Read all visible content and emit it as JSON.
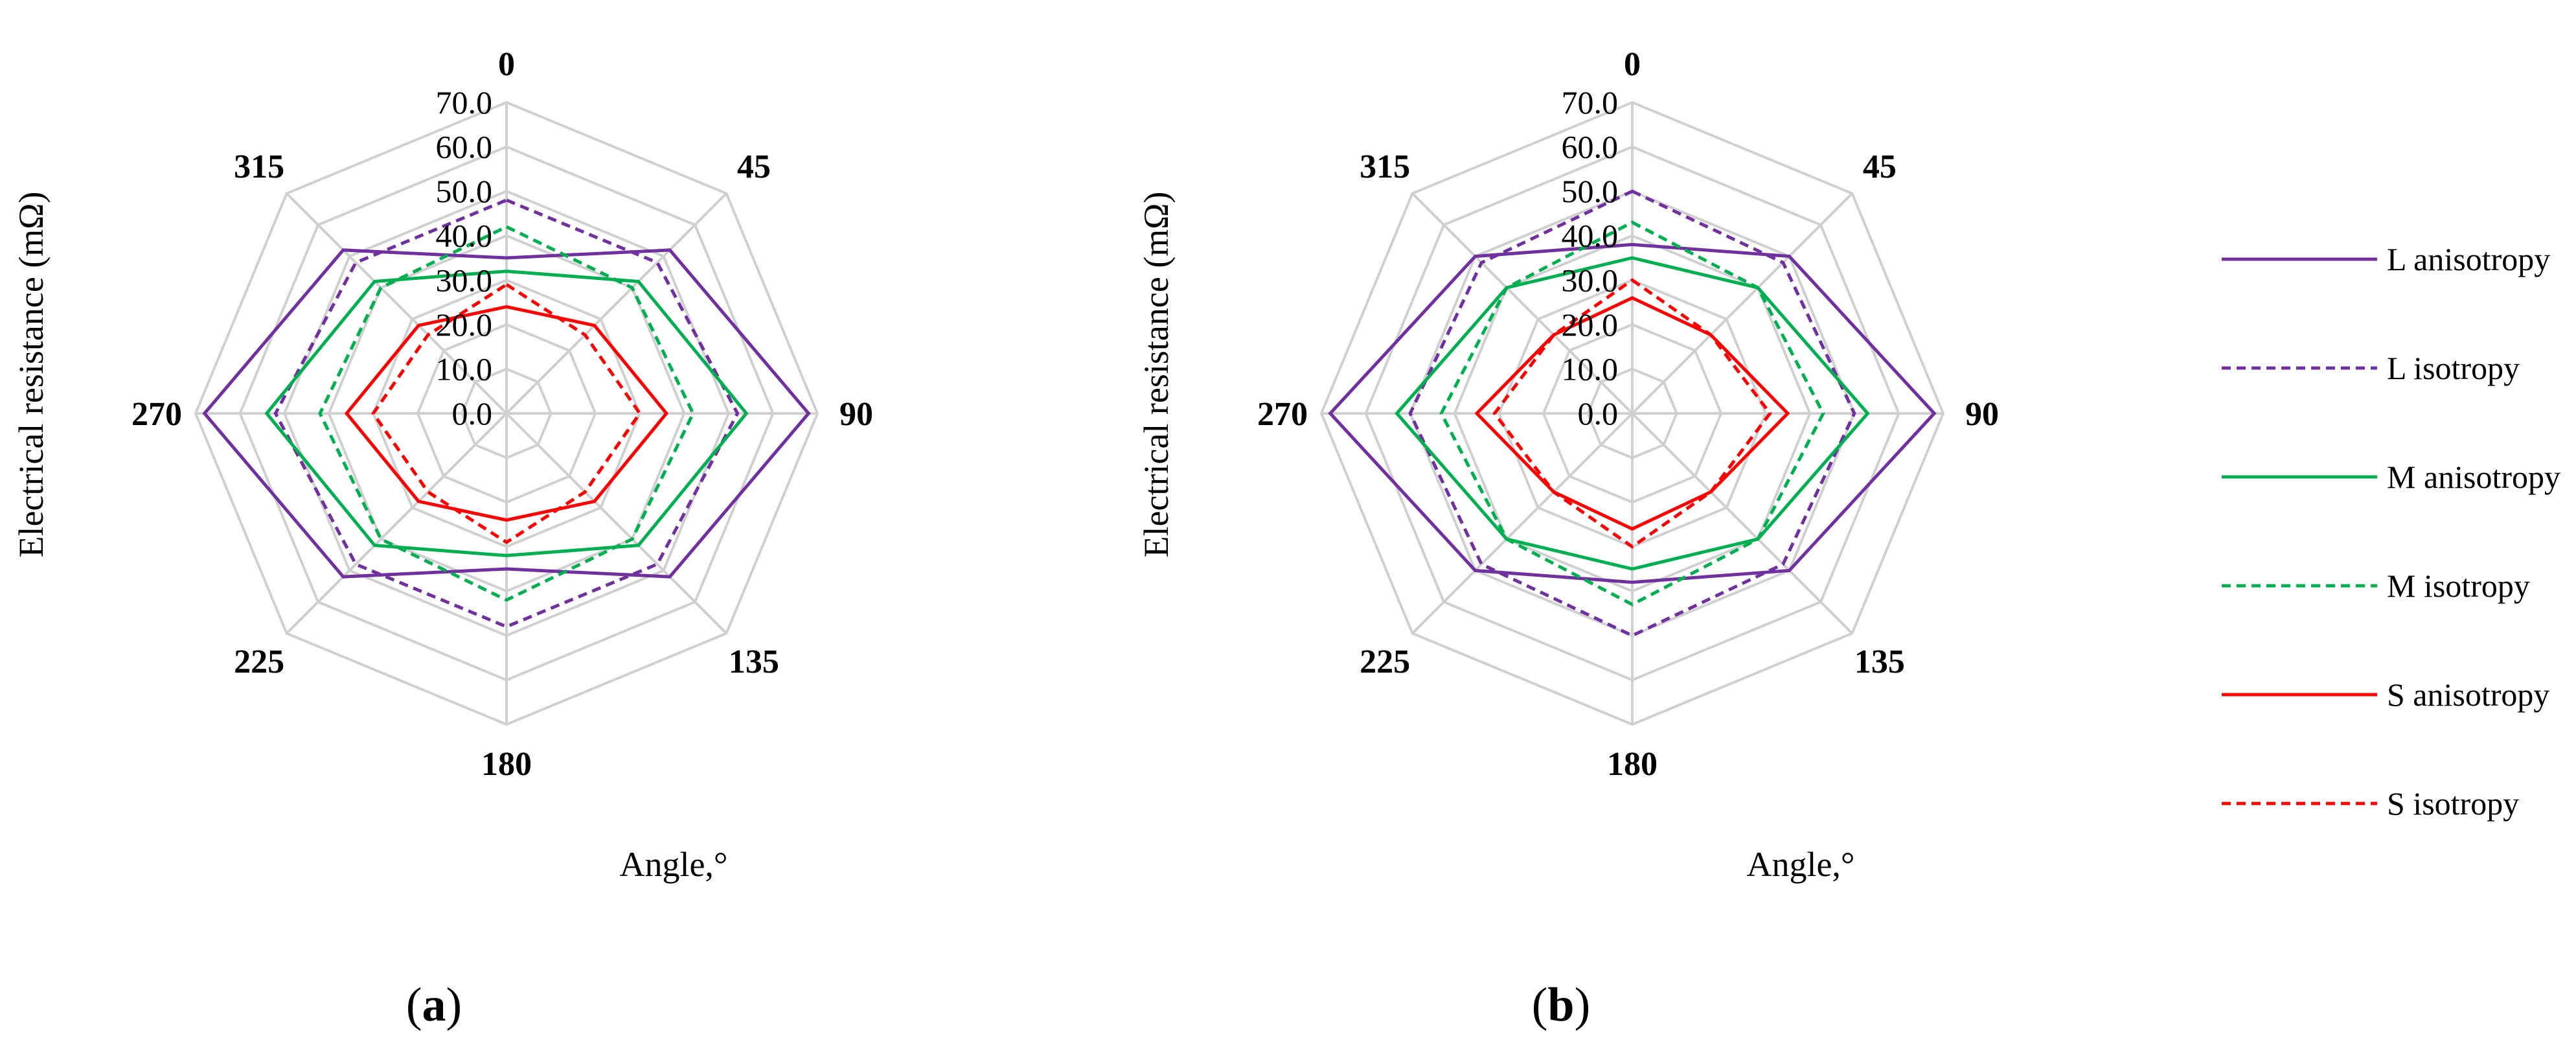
{
  "chart_data": [
    {
      "type": "radar",
      "panel_label": "a",
      "categories": [
        "0",
        "45",
        "90",
        "135",
        "180",
        "225",
        "270",
        "315"
      ],
      "ylim": [
        0,
        70
      ],
      "tick_labels": [
        "0.0",
        "10.0",
        "20.0",
        "30.0",
        "40.0",
        "50.0",
        "60.0",
        "70.0"
      ],
      "ylabel": "Electrical resistance (mΩ)",
      "xlabel": "Angle,°",
      "series": [
        {
          "name": "L anisotropy",
          "color": "#7030A0",
          "dash": "solid",
          "values": [
            35,
            52,
            68,
            52,
            35,
            52,
            68,
            52
          ]
        },
        {
          "name": "L isotropy",
          "color": "#7030A0",
          "dash": "dashed",
          "values": [
            48,
            48,
            52,
            48,
            48,
            48,
            52,
            48
          ]
        },
        {
          "name": "M anisotropy",
          "color": "#00B050",
          "dash": "solid",
          "values": [
            32,
            42,
            54,
            42,
            32,
            42,
            54,
            42
          ]
        },
        {
          "name": "M isotropy",
          "color": "#00B050",
          "dash": "dashed",
          "values": [
            42,
            40,
            42,
            40,
            42,
            40,
            42,
            40
          ]
        },
        {
          "name": "S anisotropy",
          "color": "#FF0000",
          "dash": "solid",
          "values": [
            24,
            28,
            36,
            28,
            24,
            28,
            36,
            28
          ]
        },
        {
          "name": "S isotropy",
          "color": "#FF0000",
          "dash": "dashed",
          "values": [
            29,
            25,
            30,
            25,
            29,
            25,
            30,
            25
          ]
        }
      ]
    },
    {
      "type": "radar",
      "panel_label": "b",
      "categories": [
        "0",
        "45",
        "90",
        "135",
        "180",
        "225",
        "270",
        "315"
      ],
      "ylim": [
        0,
        70
      ],
      "tick_labels": [
        "0.0",
        "10.0",
        "20.0",
        "30.0",
        "40.0",
        "50.0",
        "60.0",
        "70.0"
      ],
      "ylabel": "Electrical resistance (mΩ)",
      "xlabel": "Angle,°",
      "series": [
        {
          "name": "L anisotropy",
          "color": "#7030A0",
          "dash": "solid",
          "values": [
            38,
            50,
            68,
            50,
            38,
            50,
            68,
            50
          ]
        },
        {
          "name": "L isotropy",
          "color": "#7030A0",
          "dash": "dashed",
          "values": [
            50,
            48,
            50,
            48,
            50,
            48,
            50,
            48
          ]
        },
        {
          "name": "M anisotropy",
          "color": "#00B050",
          "dash": "solid",
          "values": [
            35,
            40,
            53,
            40,
            35,
            40,
            53,
            40
          ]
        },
        {
          "name": "M isotropy",
          "color": "#00B050",
          "dash": "dashed",
          "values": [
            43,
            40,
            43,
            40,
            43,
            40,
            43,
            40
          ]
        },
        {
          "name": "S anisotropy",
          "color": "#FF0000",
          "dash": "solid",
          "values": [
            26,
            25,
            35,
            25,
            26,
            25,
            35,
            25
          ]
        },
        {
          "name": "S isotropy",
          "color": "#FF0000",
          "dash": "dashed",
          "values": [
            30,
            25,
            31,
            25,
            30,
            25,
            31,
            25
          ]
        }
      ]
    }
  ],
  "grid_color": "#D0D0D0"
}
